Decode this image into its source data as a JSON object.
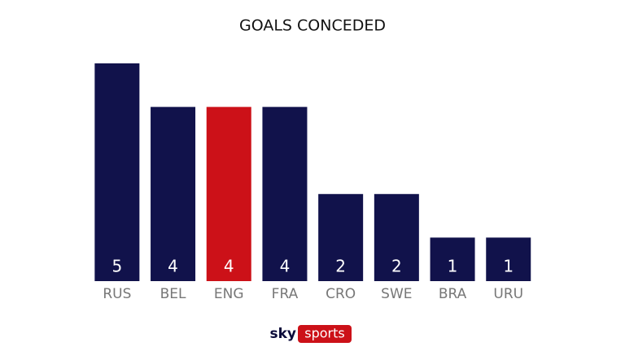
{
  "chart_data": {
    "type": "bar",
    "title": "GOALS CONCEDED",
    "categories": [
      "RUS",
      "BEL",
      "ENG",
      "FRA",
      "CRO",
      "SWE",
      "BRA",
      "URU"
    ],
    "values": [
      5,
      4,
      4,
      4,
      2,
      2,
      1,
      1
    ],
    "colors": [
      "#11124b",
      "#11124b",
      "#cc1118",
      "#11124b",
      "#11124b",
      "#11124b",
      "#11124b",
      "#11124b"
    ],
    "ylim": [
      0,
      5
    ]
  },
  "logo": {
    "sky": "sky",
    "sports": "sports"
  }
}
